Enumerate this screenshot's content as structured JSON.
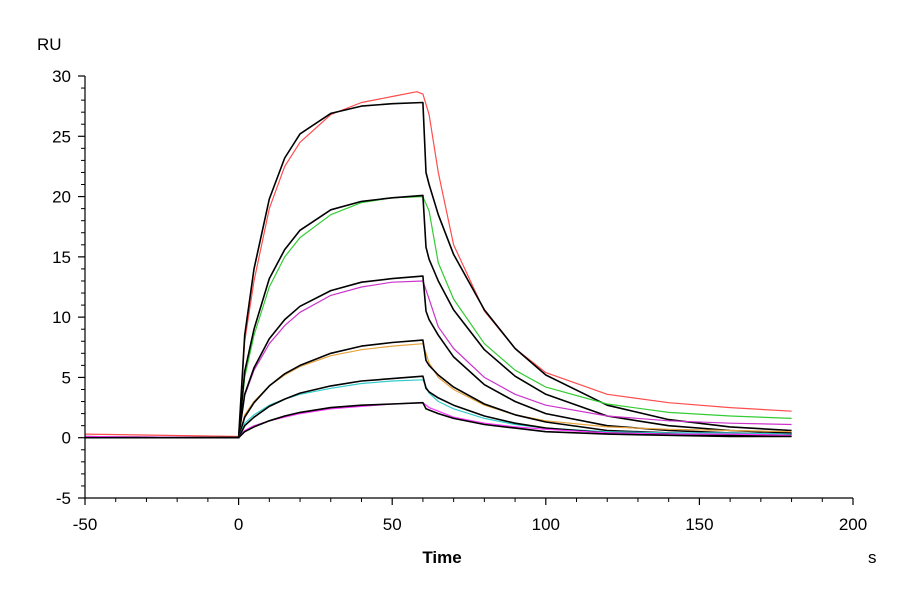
{
  "chart_data": {
    "type": "line",
    "title": "",
    "xlabel": "Time",
    "x_unit": "s",
    "ylabel": "",
    "y_unit": "RU",
    "xlim": [
      -50,
      200
    ],
    "ylim": [
      -5,
      30
    ],
    "x_ticks": [
      -50,
      0,
      50,
      100,
      150,
      200
    ],
    "y_ticks": [
      -5,
      0,
      5,
      10,
      15,
      20,
      25,
      30
    ],
    "x_tick_labels": [
      "-50",
      "0",
      "50",
      "100",
      "150",
      "200"
    ],
    "y_tick_labels": [
      "-5",
      "0",
      "5",
      "10",
      "15",
      "20",
      "25",
      "30"
    ],
    "grid": false,
    "legend": "none",
    "series": [
      {
        "kind": "measured",
        "color": "#ff4d4d",
        "x": [
          -50,
          0,
          2,
          5,
          10,
          15,
          20,
          30,
          40,
          50,
          58,
          60,
          62,
          65,
          70,
          80,
          90,
          100,
          120,
          140,
          160,
          180
        ],
        "y": [
          0.3,
          0.1,
          8.0,
          13.0,
          19.0,
          22.5,
          24.5,
          26.8,
          27.8,
          28.3,
          28.7,
          28.5,
          26.8,
          22.0,
          16.0,
          10.5,
          7.4,
          5.4,
          3.6,
          2.9,
          2.5,
          2.2
        ]
      },
      {
        "kind": "fit",
        "color": "#000000",
        "x": [
          -50,
          0,
          2,
          5,
          10,
          15,
          20,
          30,
          40,
          50,
          60,
          61,
          62,
          65,
          70,
          80,
          90,
          100,
          120,
          140,
          160,
          180
        ],
        "y": [
          0.0,
          0.0,
          8.5,
          14.0,
          19.8,
          23.2,
          25.2,
          26.9,
          27.5,
          27.7,
          27.8,
          22.0,
          21.0,
          18.5,
          15.2,
          10.6,
          7.4,
          5.2,
          2.7,
          1.5,
          0.9,
          0.6
        ]
      },
      {
        "kind": "measured",
        "color": "#33cc33",
        "x": [
          -50,
          0,
          2,
          5,
          10,
          15,
          20,
          30,
          40,
          50,
          60,
          62,
          65,
          70,
          80,
          90,
          100,
          120,
          140,
          160,
          180
        ],
        "y": [
          0.1,
          0.0,
          5.0,
          8.5,
          12.5,
          15.0,
          16.6,
          18.5,
          19.5,
          19.9,
          20.0,
          18.8,
          14.5,
          11.5,
          7.8,
          5.6,
          4.2,
          2.8,
          2.1,
          1.8,
          1.6
        ]
      },
      {
        "kind": "fit",
        "color": "#000000",
        "x": [
          -50,
          0,
          2,
          5,
          10,
          15,
          20,
          30,
          40,
          50,
          60,
          61,
          62,
          65,
          70,
          80,
          90,
          100,
          120,
          140,
          160,
          180
        ],
        "y": [
          0.0,
          0.0,
          5.5,
          9.0,
          13.2,
          15.6,
          17.2,
          18.9,
          19.6,
          19.9,
          20.1,
          15.8,
          14.8,
          13.0,
          10.6,
          7.3,
          5.1,
          3.6,
          1.8,
          1.0,
          0.6,
          0.4
        ]
      },
      {
        "kind": "measured",
        "color": "#cc33cc",
        "x": [
          -50,
          0,
          2,
          5,
          10,
          15,
          20,
          30,
          40,
          50,
          60,
          62,
          65,
          70,
          80,
          90,
          100,
          120,
          140,
          160,
          180
        ],
        "y": [
          0.1,
          0.0,
          3.5,
          5.6,
          7.8,
          9.3,
          10.4,
          11.8,
          12.5,
          12.9,
          13.0,
          11.5,
          9.2,
          7.4,
          5.0,
          3.6,
          2.7,
          1.8,
          1.4,
          1.2,
          1.1
        ]
      },
      {
        "kind": "fit",
        "color": "#000000",
        "x": [
          -50,
          0,
          2,
          5,
          10,
          15,
          20,
          30,
          40,
          50,
          60,
          61,
          62,
          65,
          70,
          80,
          90,
          100,
          120,
          140,
          160,
          180
        ],
        "y": [
          0.0,
          0.0,
          3.6,
          5.8,
          8.2,
          9.8,
          10.9,
          12.2,
          12.9,
          13.2,
          13.4,
          10.5,
          9.8,
          8.5,
          6.7,
          4.4,
          3.0,
          2.0,
          1.0,
          0.6,
          0.4,
          0.3
        ]
      },
      {
        "kind": "measured",
        "color": "#e6a23c",
        "x": [
          -50,
          0,
          2,
          5,
          10,
          15,
          20,
          30,
          40,
          50,
          60,
          62,
          65,
          70,
          80,
          90,
          100,
          120,
          140,
          160,
          180
        ],
        "y": [
          0.1,
          0.0,
          1.9,
          3.0,
          4.3,
          5.2,
          5.9,
          6.8,
          7.3,
          7.6,
          7.8,
          6.2,
          5.0,
          4.0,
          2.7,
          1.9,
          1.4,
          0.9,
          0.7,
          0.6,
          0.5
        ]
      },
      {
        "kind": "fit",
        "color": "#000000",
        "x": [
          -50,
          0,
          2,
          5,
          10,
          15,
          20,
          30,
          40,
          50,
          60,
          61,
          62,
          65,
          70,
          80,
          90,
          100,
          120,
          140,
          160,
          180
        ],
        "y": [
          0.0,
          0.0,
          1.7,
          2.9,
          4.3,
          5.3,
          6.0,
          7.0,
          7.6,
          7.9,
          8.1,
          6.4,
          6.0,
          5.2,
          4.2,
          2.8,
          1.9,
          1.3,
          0.6,
          0.4,
          0.3,
          0.3
        ]
      },
      {
        "kind": "measured",
        "color": "#33cccc",
        "x": [
          -50,
          0,
          2,
          5,
          10,
          15,
          20,
          30,
          40,
          50,
          60,
          62,
          65,
          70,
          80,
          90,
          100,
          120,
          140,
          160,
          180
        ],
        "y": [
          0.1,
          0.0,
          1.2,
          1.9,
          2.7,
          3.2,
          3.6,
          4.1,
          4.5,
          4.7,
          4.8,
          3.7,
          3.0,
          2.4,
          1.6,
          1.1,
          0.8,
          0.5,
          0.4,
          0.4,
          0.3
        ]
      },
      {
        "kind": "fit",
        "color": "#000000",
        "x": [
          -50,
          0,
          2,
          5,
          10,
          15,
          20,
          30,
          40,
          50,
          60,
          61,
          62,
          65,
          70,
          80,
          90,
          100,
          120,
          140,
          160,
          180
        ],
        "y": [
          0.0,
          0.0,
          1.0,
          1.7,
          2.6,
          3.2,
          3.7,
          4.3,
          4.7,
          4.9,
          5.1,
          4.1,
          3.8,
          3.3,
          2.7,
          1.8,
          1.2,
          0.8,
          0.4,
          0.3,
          0.2,
          0.2
        ]
      },
      {
        "kind": "measured",
        "color": "#ff33ff",
        "x": [
          -50,
          0,
          2,
          5,
          10,
          15,
          20,
          30,
          40,
          50,
          60,
          62,
          65,
          70,
          80,
          90,
          100,
          120,
          140,
          160,
          180
        ],
        "y": [
          0.1,
          0.0,
          0.6,
          1.0,
          1.4,
          1.7,
          2.0,
          2.4,
          2.6,
          2.8,
          2.9,
          2.5,
          2.2,
          1.7,
          1.2,
          0.9,
          0.7,
          0.4,
          0.3,
          0.3,
          0.2
        ]
      },
      {
        "kind": "fit",
        "color": "#000000",
        "x": [
          -50,
          0,
          2,
          5,
          10,
          15,
          20,
          30,
          40,
          50,
          60,
          61,
          62,
          65,
          70,
          80,
          90,
          100,
          120,
          140,
          160,
          180
        ],
        "y": [
          0.0,
          0.0,
          0.5,
          0.9,
          1.4,
          1.8,
          2.1,
          2.5,
          2.7,
          2.8,
          2.9,
          2.4,
          2.3,
          2.0,
          1.6,
          1.1,
          0.8,
          0.5,
          0.3,
          0.2,
          0.1,
          0.1
        ]
      }
    ]
  }
}
